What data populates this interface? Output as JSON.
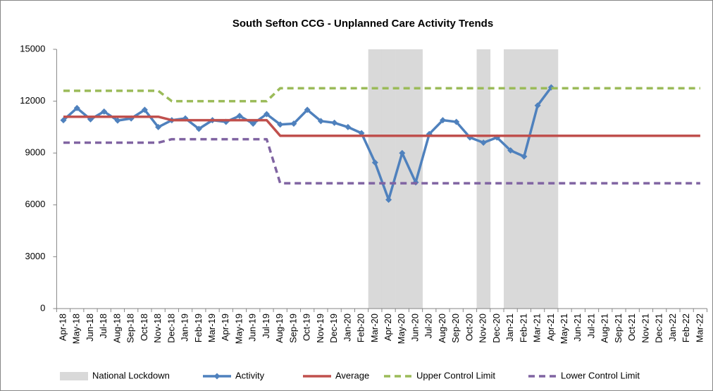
{
  "chart_data": {
    "type": "line",
    "title": "South Sefton CCG - Unplanned Care Activity Trends",
    "categories": [
      "Apr-18",
      "May-18",
      "Jun-18",
      "Jul-18",
      "Aug-18",
      "Sep-18",
      "Oct-18",
      "Nov-18",
      "Dec-18",
      "Jan-19",
      "Feb-19",
      "Mar-19",
      "Apr-19",
      "May-19",
      "Jun-19",
      "Jul-19",
      "Aug-19",
      "Sep-19",
      "Oct-19",
      "Nov-19",
      "Dec-19",
      "Jan-20",
      "Feb-20",
      "Mar-20",
      "Apr-20",
      "May-20",
      "Jun-20",
      "Jul-20",
      "Aug-20",
      "Sep-20",
      "Oct-20",
      "Nov-20",
      "Dec-20",
      "Jan-21",
      "Feb-21",
      "Mar-21",
      "Apr-21",
      "May-21",
      "Jun-21",
      "Jul-21",
      "Aug-21",
      "Sep-21",
      "Oct-21",
      "Nov-21",
      "Dec-21",
      "Jan-22",
      "Feb-22",
      "Mar-22"
    ],
    "series": [
      {
        "name": "National Lockdown",
        "type": "bar",
        "color": "#d9d9d9",
        "values": [
          null,
          null,
          null,
          null,
          null,
          null,
          null,
          null,
          null,
          null,
          null,
          null,
          null,
          null,
          null,
          null,
          null,
          null,
          null,
          null,
          null,
          null,
          null,
          15000,
          15000,
          15000,
          15000,
          null,
          null,
          null,
          null,
          15000,
          null,
          15000,
          15000,
          15000,
          15000,
          null,
          null,
          null,
          null,
          null,
          null,
          null,
          null,
          null,
          null,
          null
        ]
      },
      {
        "name": "Activity",
        "type": "line",
        "color": "#4f81bd",
        "dash": false,
        "marker": "diamond",
        "values": [
          10900,
          11600,
          10950,
          11400,
          10880,
          11000,
          11500,
          10500,
          10900,
          11000,
          10400,
          10900,
          10800,
          11150,
          10700,
          11250,
          10650,
          10700,
          11500,
          10850,
          10750,
          10500,
          10150,
          8450,
          6300,
          9000,
          7300,
          10100,
          10900,
          10800,
          9900,
          9600,
          9900,
          9150,
          8800,
          11750,
          12800,
          null,
          null,
          null,
          null,
          null,
          null,
          null,
          null,
          null,
          null,
          null
        ]
      },
      {
        "name": "Average",
        "type": "line",
        "color": "#c0504d",
        "dash": false,
        "values": [
          11100,
          11100,
          11100,
          11100,
          11100,
          11100,
          11100,
          11100,
          10900,
          10900,
          10900,
          10900,
          10900,
          10900,
          10900,
          10900,
          10000,
          10000,
          10000,
          10000,
          10000,
          10000,
          10000,
          10000,
          10000,
          10000,
          10000,
          10000,
          10000,
          10000,
          10000,
          10000,
          10000,
          10000,
          10000,
          10000,
          10000,
          10000,
          10000,
          10000,
          10000,
          10000,
          10000,
          10000,
          10000,
          10000,
          10000,
          10000
        ]
      },
      {
        "name": "Upper Control Limit",
        "type": "line",
        "color": "#9bbb59",
        "dash": true,
        "values": [
          12600,
          12600,
          12600,
          12600,
          12600,
          12600,
          12600,
          12600,
          12000,
          12000,
          12000,
          12000,
          12000,
          12000,
          12000,
          12000,
          12750,
          12750,
          12750,
          12750,
          12750,
          12750,
          12750,
          12750,
          12750,
          12750,
          12750,
          12750,
          12750,
          12750,
          12750,
          12750,
          12750,
          12750,
          12750,
          12750,
          12750,
          12750,
          12750,
          12750,
          12750,
          12750,
          12750,
          12750,
          12750,
          12750,
          12750,
          12750
        ]
      },
      {
        "name": "Lower Control Limit",
        "type": "line",
        "color": "#8064a2",
        "dash": true,
        "values": [
          9600,
          9600,
          9600,
          9600,
          9600,
          9600,
          9600,
          9600,
          9800,
          9800,
          9800,
          9800,
          9800,
          9800,
          9800,
          9800,
          7250,
          7250,
          7250,
          7250,
          7250,
          7250,
          7250,
          7250,
          7250,
          7250,
          7250,
          7250,
          7250,
          7250,
          7250,
          7250,
          7250,
          7250,
          7250,
          7250,
          7250,
          7250,
          7250,
          7250,
          7250,
          7250,
          7250,
          7250,
          7250,
          7250,
          7250,
          7250
        ]
      }
    ],
    "ylim": [
      0,
      15000
    ],
    "yticks": [
      0,
      3000,
      6000,
      9000,
      12000,
      15000
    ],
    "grid": false,
    "legend": "bottom"
  }
}
